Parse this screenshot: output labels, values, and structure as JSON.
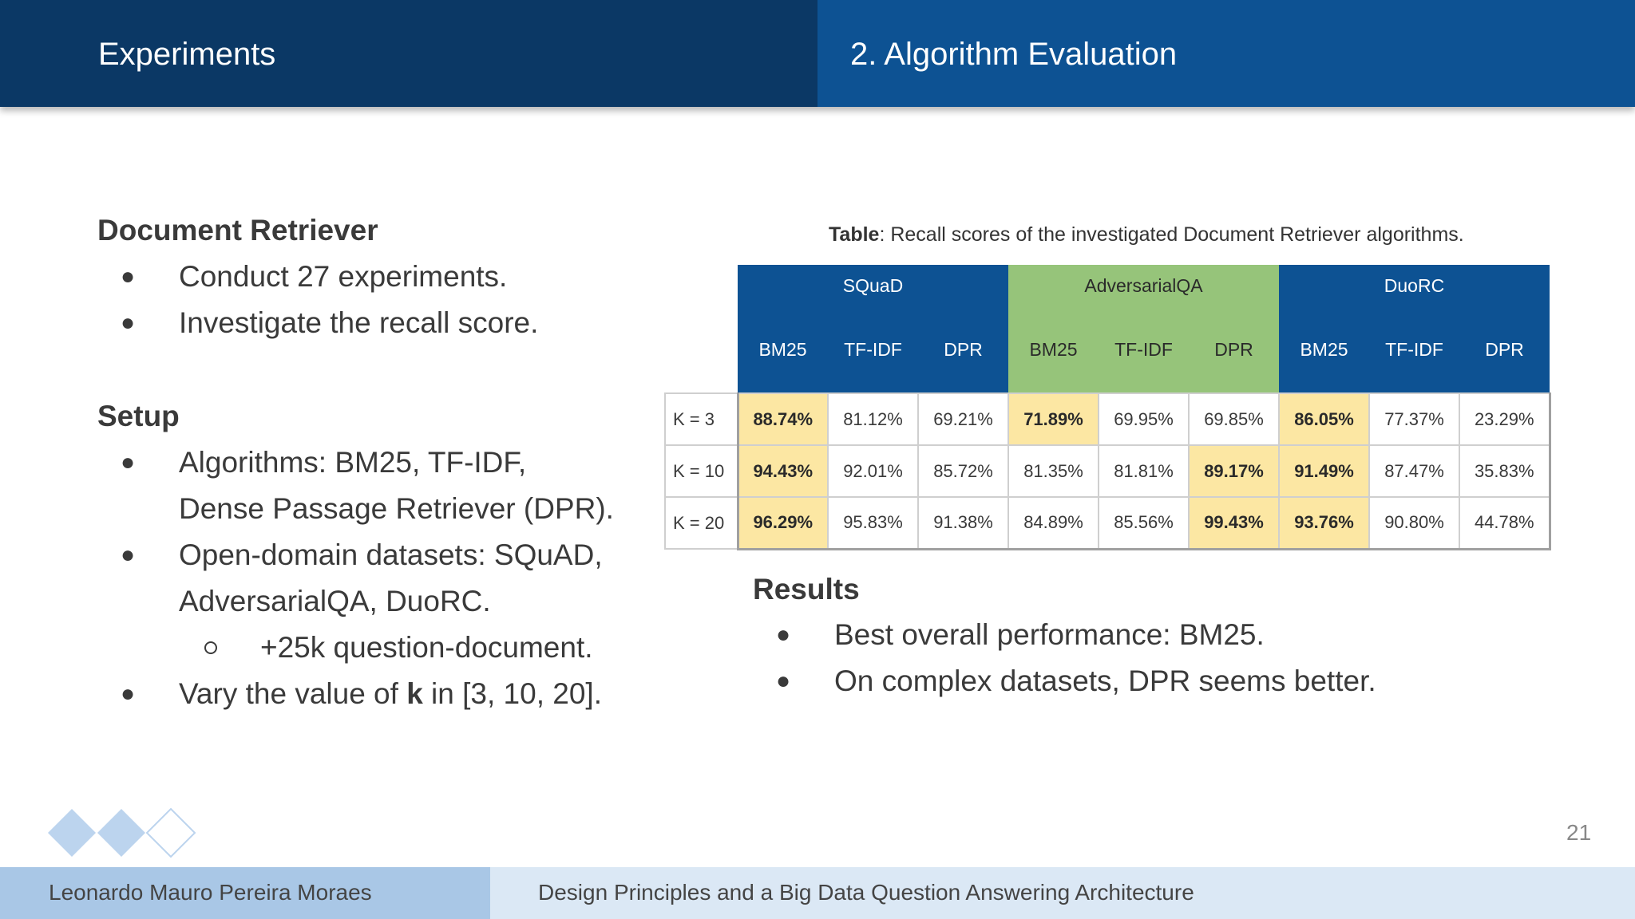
{
  "header": {
    "section": "Experiments",
    "subsection": "2. Algorithm Evaluation"
  },
  "left": {
    "doc_retriever": {
      "heading": "Document Retriever",
      "bullets": [
        "Conduct 27 experiments.",
        "Investigate the recall score."
      ]
    },
    "setup": {
      "heading": "Setup",
      "algorithms_line1": "Algorithms: BM25, TF-IDF,",
      "algorithms_line2": "Dense Passage Retriever (DPR).",
      "datasets_line1": "Open-domain datasets: SQuAD,",
      "datasets_line2": "AdversarialQA, DuoRC.",
      "sub_bullet": "+25k question-document.",
      "vary_prefix": "Vary the value of ",
      "vary_bold": "k",
      "vary_suffix": " in [3, 10, 20]."
    }
  },
  "table": {
    "caption_bold": "Table",
    "caption_rest": ": Recall scores of the investigated Document Retriever algorithms.",
    "groups": [
      "SQuaD",
      "AdversarialQA",
      "DuoRC"
    ],
    "subheaders": [
      "BM25",
      "TF-IDF",
      "DPR",
      "BM25",
      "TF-IDF",
      "DPR",
      "BM25",
      "TF-IDF",
      "DPR"
    ],
    "rows": [
      {
        "label": "K = 3",
        "values": [
          "88.74%",
          "81.12%",
          "69.21%",
          "71.89%",
          "69.95%",
          "69.85%",
          "86.05%",
          "77.37%",
          "23.29%"
        ]
      },
      {
        "label": "K = 10",
        "values": [
          "94.43%",
          "92.01%",
          "85.72%",
          "81.35%",
          "81.81%",
          "89.17%",
          "91.49%",
          "87.47%",
          "35.83%"
        ]
      },
      {
        "label": "K = 20",
        "values": [
          "96.29%",
          "95.83%",
          "91.38%",
          "84.89%",
          "85.56%",
          "99.43%",
          "93.76%",
          "90.80%",
          "44.78%"
        ]
      }
    ]
  },
  "results": {
    "heading": "Results",
    "bullets": [
      "Best overall performance: BM25.",
      "On complex datasets, DPR seems better."
    ]
  },
  "footer": {
    "page_number": "21",
    "author": "Leonardo Mauro Pereira Moraes",
    "title": "Design Principles and a Big Data Question Answering Architecture"
  },
  "colors": {
    "header_dark": "#0b3865",
    "header_blue": "#0d5293",
    "table_green": "#96c47a",
    "highlight_yellow": "#fce7a3",
    "footer_light": "#dbe8f5",
    "footer_mid": "#a9c7e6"
  }
}
